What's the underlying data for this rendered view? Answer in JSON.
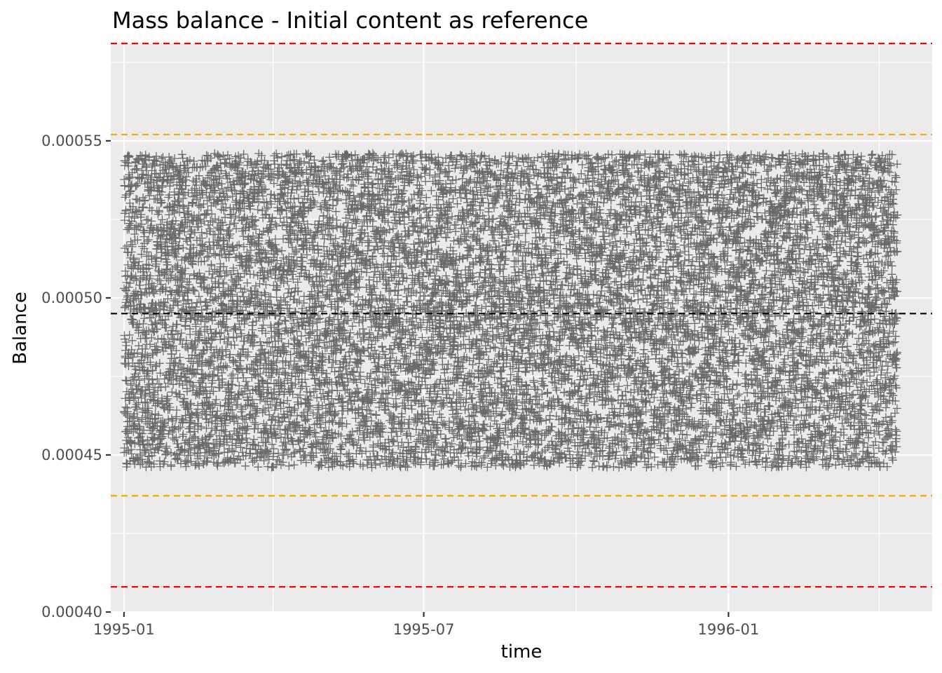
{
  "chart_data": {
    "type": "scatter",
    "title": "Mass balance - Initial content as reference",
    "xlabel": "time",
    "ylabel": "Balance",
    "x_axis": {
      "type": "date",
      "range": [
        "1994-12-24",
        "1996-05-03"
      ],
      "ticks": [
        "1995-01-01",
        "1995-07-01",
        "1996-01-01"
      ],
      "tick_labels": [
        "1995-01",
        "1995-07",
        "1996-01"
      ],
      "minor_ticks": [
        "1995-04-01",
        "1995-10-01",
        "1996-04-01"
      ]
    },
    "y_axis": {
      "range": [
        0.0004,
        0.000581
      ],
      "ticks": [
        0.0004,
        0.00045,
        0.0005,
        0.00055
      ],
      "tick_labels": [
        "0.00040",
        "0.00045",
        "0.00050",
        "0.00055"
      ],
      "minor_ticks": [
        0.000425,
        0.000475,
        0.000525,
        0.000575
      ]
    },
    "points": {
      "marker": "cross",
      "color": "#000000",
      "opacity": 0.55,
      "x_range": [
        "1995-01-01",
        "1996-04-11"
      ],
      "y_range": [
        0.000446,
        0.000546
      ],
      "count_per_day": 28
    },
    "reference_lines": [
      {
        "y": 0.000495,
        "color": "#000000",
        "style": "dashed"
      },
      {
        "y": 0.000552,
        "color": "#FFA500",
        "style": "dashed"
      },
      {
        "y": 0.000437,
        "color": "#FFA500",
        "style": "dashed"
      },
      {
        "y": 0.000581,
        "color": "#FF0000",
        "style": "dashed"
      },
      {
        "y": 0.000408,
        "color": "#FF0000",
        "style": "dashed"
      }
    ],
    "grid": true,
    "panel_background": "#EBEBEB",
    "grid_color": "#FFFFFF"
  }
}
